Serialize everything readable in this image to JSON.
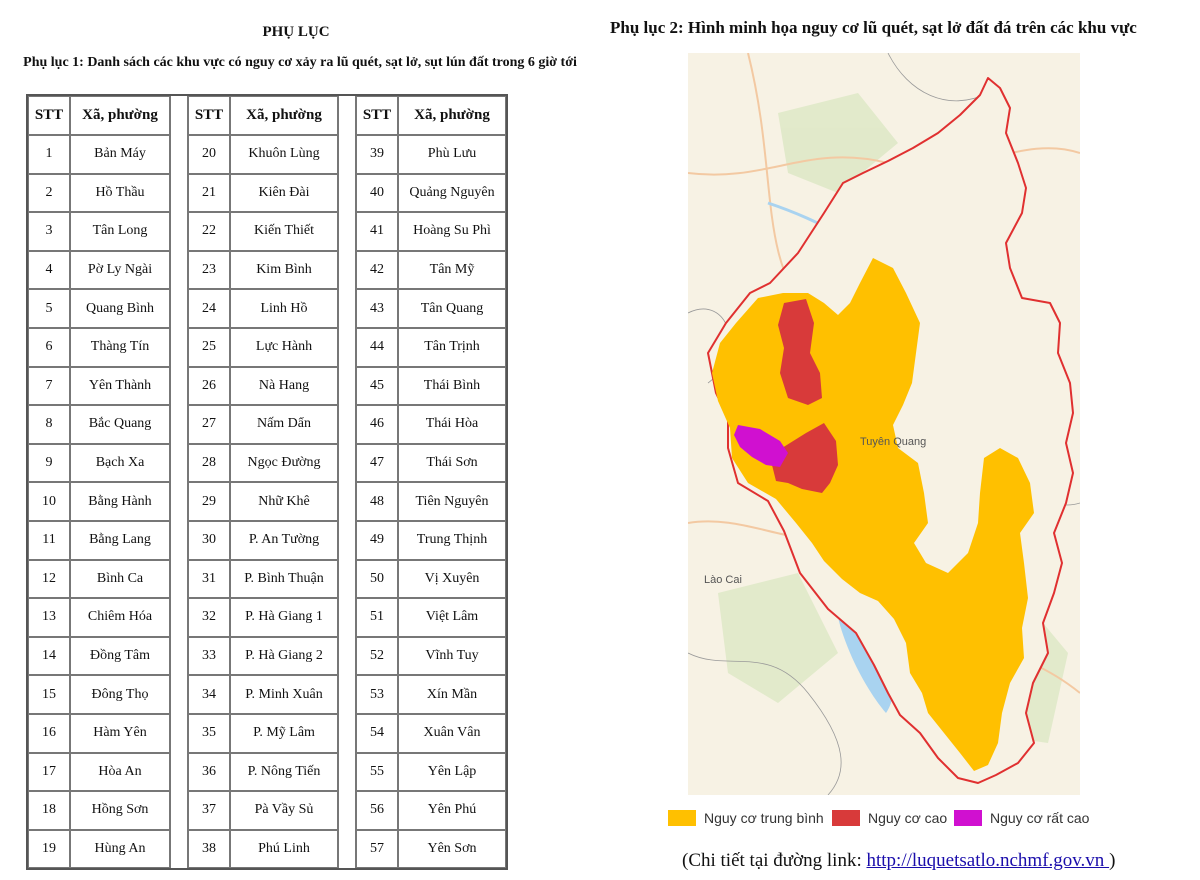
{
  "appendix": {
    "title": "PHỤ LỤC",
    "appendix1_title": "Phụ lục 1: Danh sách các khu vực có nguy cơ xảy ra lũ quét, sạt lở, sụt lún đất trong 6 giờ tới",
    "headers": {
      "stt": "STT",
      "name": "Xã, phường"
    },
    "rows": [
      [
        "1",
        "Bản Máy",
        "20",
        "Khuôn Lùng",
        "39",
        "Phù Lưu"
      ],
      [
        "2",
        "Hồ Thầu",
        "21",
        "Kiên Đài",
        "40",
        "Quảng Nguyên"
      ],
      [
        "3",
        "Tân Long",
        "22",
        "Kiến Thiết",
        "41",
        "Hoàng Su Phì"
      ],
      [
        "4",
        "Pờ Ly Ngài",
        "23",
        "Kim Bình",
        "42",
        "Tân Mỹ"
      ],
      [
        "5",
        "Quang Bình",
        "24",
        "Linh Hồ",
        "43",
        "Tân Quang"
      ],
      [
        "6",
        "Thàng Tín",
        "25",
        "Lực Hành",
        "44",
        "Tân Trịnh"
      ],
      [
        "7",
        "Yên Thành",
        "26",
        "Nà Hang",
        "45",
        "Thái Bình"
      ],
      [
        "8",
        "Bắc Quang",
        "27",
        "Nấm Dẩn",
        "46",
        "Thái Hòa"
      ],
      [
        "9",
        "Bạch Xa",
        "28",
        "Ngọc Đường",
        "47",
        "Thái Sơn"
      ],
      [
        "10",
        "Bằng Hành",
        "29",
        "Nhữ Khê",
        "48",
        "Tiên Nguyên"
      ],
      [
        "11",
        "Bằng Lang",
        "30",
        "P. An Tường",
        "49",
        "Trung Thịnh"
      ],
      [
        "12",
        "Bình Ca",
        "31",
        "P. Bình Thuận",
        "50",
        "Vị Xuyên"
      ],
      [
        "13",
        "Chiêm Hóa",
        "32",
        "P. Hà Giang 1",
        "51",
        "Việt Lâm"
      ],
      [
        "14",
        "Đồng Tâm",
        "33",
        "P. Hà Giang 2",
        "52",
        "Vĩnh Tuy"
      ],
      [
        "15",
        "Đông Thọ",
        "34",
        "P. Minh Xuân",
        "53",
        "Xín Mần"
      ],
      [
        "16",
        "Hàm Yên",
        "35",
        "P. Mỹ Lâm",
        "54",
        "Xuân Vân"
      ],
      [
        "17",
        "Hòa An",
        "36",
        "P. Nông Tiến",
        "55",
        "Yên Lập"
      ],
      [
        "18",
        "Hồng Sơn",
        "37",
        "Pà Vầy Sủ",
        "56",
        "Yên Phú"
      ],
      [
        "19",
        "Hùng An",
        "38",
        "Phú Linh",
        "57",
        "Yên Sơn"
      ]
    ]
  },
  "appendix2": {
    "title": "Phụ lục 2: Hình minh họa nguy cơ lũ quét, sạt lở đất đá trên các khu vực",
    "map_labels": {
      "province": "Tuyên Quang",
      "neighbor": "Lào Cai"
    },
    "legend": [
      {
        "label": "Nguy cơ trung bình",
        "color": "#ffc000"
      },
      {
        "label": "Nguy cơ cao",
        "color": "#d83a3a"
      },
      {
        "label": "Nguy cơ rất cao",
        "color": "#d010d0"
      }
    ],
    "link_prefix": "(Chi tiết tại đường link: ",
    "link_text": "http://luquetsatlo.nchmf.gov.vn ",
    "link_suffix": ")"
  }
}
